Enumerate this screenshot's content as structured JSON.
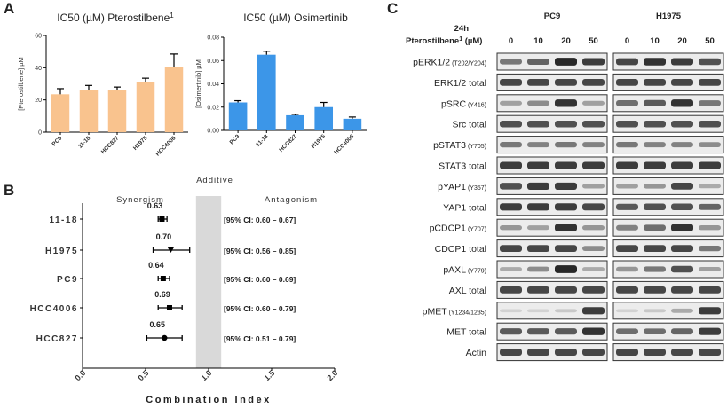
{
  "panels": {
    "a": "A",
    "b": "B",
    "c": "C"
  },
  "colors": {
    "orange": "#F9C38E",
    "blue": "#3C96E8",
    "gray_band": "#d9d9d9"
  },
  "chart_data": [
    {
      "type": "bar",
      "title": "IC50 (µM) Pterostilbene",
      "title_sup": "1",
      "ylabel": "[Pterostilbene] µM",
      "categories": [
        "PC9",
        "11-18",
        "HCC827",
        "H1975",
        "HCC4006"
      ],
      "values": [
        23.5,
        26,
        26,
        31,
        40.5
      ],
      "errors": [
        3.5,
        3,
        2,
        2.5,
        8
      ],
      "ylim": [
        0,
        60
      ],
      "yticks": [
        "0",
        "20",
        "40",
        "60"
      ],
      "color": "#F9C38E"
    },
    {
      "type": "bar",
      "title": "IC50 (µM) Osimertinib",
      "ylabel": "[Osimertinib] µM",
      "categories": [
        "PC9",
        "11-18",
        "HCC827",
        "H1975",
        "HCC4006"
      ],
      "values": [
        0.024,
        0.065,
        0.013,
        0.02,
        0.01
      ],
      "errors": [
        0.0015,
        0.003,
        0.0008,
        0.004,
        0.0015
      ],
      "ylim": [
        0,
        0.08
      ],
      "yticks": [
        "0.00",
        "0.02",
        "0.04",
        "0.06",
        "0.08"
      ],
      "color": "#3C96E8"
    },
    {
      "type": "scatter",
      "title": "Additive",
      "xlabel": "Combination Index",
      "left_label": "Synergism",
      "right_label": "Antagonism",
      "xlim": [
        0,
        2
      ],
      "xticks": [
        "0.0",
        "0.5",
        "1.0",
        "1.5",
        "2.0"
      ],
      "additive_band": [
        0.9,
        1.1
      ],
      "rows": [
        {
          "label": "11-18",
          "ci": 0.63,
          "lo": 0.6,
          "hi": 0.67,
          "ci_text": "0.63",
          "range_text": "[95% CI: 0.60 – 0.67]",
          "marker": "square"
        },
        {
          "label": "H1975",
          "ci": 0.7,
          "lo": 0.56,
          "hi": 0.85,
          "ci_text": "0.70",
          "range_text": "[95% CI: 0.56 – 0.85]",
          "marker": "triangle"
        },
        {
          "label": "PC9",
          "ci": 0.64,
          "lo": 0.6,
          "hi": 0.69,
          "ci_text": "0.64",
          "range_text": "[95% CI: 0.60 – 0.69]",
          "marker": "square"
        },
        {
          "label": "HCC4006",
          "ci": 0.69,
          "lo": 0.6,
          "hi": 0.79,
          "ci_text": "0.69",
          "range_text": "[95% CI: 0.60 – 0.79]",
          "marker": "square"
        },
        {
          "label": "HCC827",
          "ci": 0.65,
          "lo": 0.51,
          "hi": 0.79,
          "ci_text": "0.65",
          "range_text": "[95% CI: 0.51 – 0.79]",
          "marker": "circle"
        }
      ]
    }
  ],
  "western_blot": {
    "time_label": "24h",
    "treatment_label": "Pterostilbene",
    "treatment_sup": "1",
    "treatment_unit": "(µM)",
    "cell_lines": [
      "PC9",
      "H1975"
    ],
    "doses": [
      "0",
      "10",
      "20",
      "50"
    ],
    "rows": [
      {
        "name": "pERK1/2",
        "site": "(T202/Y204)",
        "pc9": [
          0.55,
          0.65,
          0.95,
          0.85
        ],
        "h1975": [
          0.8,
          0.9,
          0.85,
          0.75
        ]
      },
      {
        "name": "ERK1/2 total",
        "site": "",
        "pc9": [
          0.8,
          0.8,
          0.8,
          0.8
        ],
        "h1975": [
          0.8,
          0.8,
          0.8,
          0.8
        ]
      },
      {
        "name": "pSRC",
        "site": "(Y416)",
        "pc9": [
          0.35,
          0.45,
          0.9,
          0.35
        ],
        "h1975": [
          0.6,
          0.7,
          0.9,
          0.55
        ]
      },
      {
        "name": "Src total",
        "site": "",
        "pc9": [
          0.75,
          0.75,
          0.75,
          0.75
        ],
        "h1975": [
          0.75,
          0.75,
          0.75,
          0.75
        ]
      },
      {
        "name": "pSTAT3",
        "site": "(Y705)",
        "pc9": [
          0.55,
          0.5,
          0.55,
          0.5
        ],
        "h1975": [
          0.55,
          0.5,
          0.5,
          0.45
        ]
      },
      {
        "name": "STAT3 total",
        "site": "",
        "pc9": [
          0.85,
          0.85,
          0.85,
          0.85
        ],
        "h1975": [
          0.85,
          0.85,
          0.85,
          0.85
        ]
      },
      {
        "name": "pYAP1",
        "site": "(Y357)",
        "pc9": [
          0.75,
          0.85,
          0.85,
          0.35
        ],
        "h1975": [
          0.35,
          0.4,
          0.8,
          0.3
        ]
      },
      {
        "name": "YAP1 total",
        "site": "",
        "pc9": [
          0.85,
          0.85,
          0.85,
          0.8
        ],
        "h1975": [
          0.7,
          0.75,
          0.75,
          0.65
        ]
      },
      {
        "name": "pCDCP1",
        "site": "(Y707)",
        "pc9": [
          0.4,
          0.35,
          0.9,
          0.4
        ],
        "h1975": [
          0.5,
          0.6,
          0.9,
          0.4
        ]
      },
      {
        "name": "CDCP1 total",
        "site": "",
        "pc9": [
          0.8,
          0.8,
          0.8,
          0.45
        ],
        "h1975": [
          0.8,
          0.8,
          0.8,
          0.55
        ]
      },
      {
        "name": "pAXL",
        "site": "(Y779)",
        "pc9": [
          0.3,
          0.45,
          0.95,
          0.3
        ],
        "h1975": [
          0.4,
          0.55,
          0.75,
          0.35
        ]
      },
      {
        "name": "AXL total",
        "site": "",
        "pc9": [
          0.8,
          0.8,
          0.8,
          0.8
        ],
        "h1975": [
          0.8,
          0.8,
          0.8,
          0.8
        ]
      },
      {
        "name": "pMET",
        "site": "(Y1234/1235)",
        "pc9": [
          0.1,
          0.1,
          0.15,
          0.85
        ],
        "h1975": [
          0.1,
          0.15,
          0.3,
          0.85
        ]
      },
      {
        "name": "MET total",
        "site": "",
        "pc9": [
          0.7,
          0.7,
          0.7,
          0.9
        ],
        "h1975": [
          0.6,
          0.6,
          0.65,
          0.85
        ]
      },
      {
        "name": "Actin",
        "site": "",
        "pc9": [
          0.8,
          0.8,
          0.8,
          0.8
        ],
        "h1975": [
          0.8,
          0.8,
          0.8,
          0.8
        ]
      }
    ]
  }
}
